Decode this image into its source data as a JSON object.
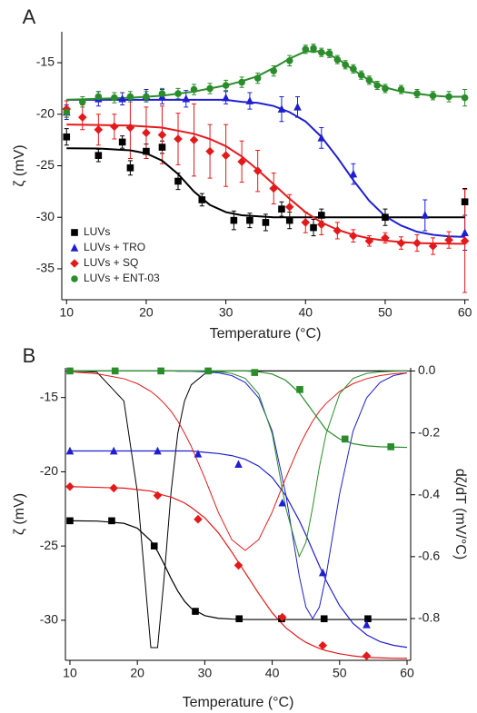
{
  "chart_data": [
    {
      "type": "scatter",
      "panel_label": "A",
      "x_label": "Temperature (°C)",
      "y_label": "ζ (mV)",
      "xlim": [
        9.4,
        60.5
      ],
      "ylim": [
        -38,
        -12
      ],
      "xticks": [
        10,
        20,
        30,
        40,
        50,
        60
      ],
      "yticks": [
        -35,
        -30,
        -25,
        -20,
        -15
      ],
      "legend": "lower left",
      "fit_x": [
        10,
        14,
        18,
        20,
        22,
        24,
        26,
        28,
        30,
        32,
        34,
        36,
        38,
        40,
        42,
        44,
        46,
        48,
        50,
        52,
        54,
        56,
        58,
        60
      ],
      "series": [
        {
          "name": "LUVs",
          "color": "#000000",
          "marker": "square",
          "x": [
            10,
            14,
            17,
            18,
            20,
            22,
            24,
            27,
            31,
            33,
            35,
            37,
            38,
            41,
            42,
            50,
            60
          ],
          "values": [
            -22.2,
            -24,
            -22.7,
            -25.2,
            -23.6,
            -23.2,
            -26.5,
            -28.3,
            -30.3,
            -30.3,
            -30.5,
            -29.2,
            -30.3,
            -31,
            -29.8,
            -30,
            -28.5
          ],
          "errors": [
            0.8,
            0.6,
            0.6,
            0.7,
            0.7,
            0.6,
            0.8,
            0.6,
            0.9,
            0.7,
            0.8,
            0.7,
            0.8,
            0.8,
            0.6,
            0.8,
            1.3
          ],
          "fit": [
            -23.3,
            -23.33,
            -23.5,
            -23.8,
            -24.5,
            -25.8,
            -27.5,
            -28.8,
            -29.5,
            -29.8,
            -29.9,
            -30,
            -30,
            -30,
            -30,
            -30,
            -30,
            -30,
            -30,
            -30,
            -30,
            -30,
            -30,
            -30
          ]
        },
        {
          "name": "LUVs + TRO",
          "color": "#1f1fd0",
          "marker": "triangle",
          "x": [
            10,
            14,
            17,
            20,
            22,
            25,
            30,
            33,
            37,
            39,
            42,
            46,
            55,
            60
          ],
          "values": [
            -19.8,
            -18.5,
            -18.5,
            -18.2,
            -18.3,
            -18.5,
            -18.4,
            -18.7,
            -19.5,
            -19.3,
            -22.3,
            -25.8,
            -29.8,
            -31.5
          ],
          "errors": [
            0.7,
            0.7,
            0.6,
            0.6,
            0.7,
            0.8,
            0.6,
            0.8,
            1.2,
            1,
            1,
            1,
            1.5,
            1.7
          ],
          "fit": [
            -18.6,
            -18.6,
            -18.6,
            -18.6,
            -18.6,
            -18.6,
            -18.6,
            -18.6,
            -18.6,
            -18.8,
            -18.9,
            -19.2,
            -19.8,
            -20.7,
            -22.2,
            -24.2,
            -26.4,
            -28.4,
            -29.9,
            -30.8,
            -31.4,
            -31.7,
            -31.85,
            -31.9
          ]
        },
        {
          "name": "LUVs + SQ",
          "color": "#e31a1c",
          "marker": "diamond",
          "x": [
            10,
            12,
            14,
            16,
            18,
            20,
            22,
            24,
            26,
            28,
            30,
            32,
            34,
            36,
            38,
            40,
            42,
            44,
            46,
            48,
            50,
            52,
            54,
            56,
            58,
            60
          ],
          "values": [
            -19.5,
            -20.3,
            -21.5,
            -21.2,
            -21.3,
            -21.8,
            -22,
            -22.4,
            -22.5,
            -23.6,
            -24,
            -24.6,
            -25.5,
            -27.2,
            -29,
            -30.5,
            -30.7,
            -31.3,
            -31.8,
            -32.3,
            -32,
            -32.5,
            -32.5,
            -32.8,
            -32.2,
            -32.3
          ],
          "errors": [
            0.8,
            1.2,
            1.5,
            1.2,
            3,
            2.5,
            2.8,
            2.5,
            3.5,
            2.6,
            3,
            2,
            2,
            1.5,
            1.2,
            1,
            1,
            0.8,
            0.6,
            0.5,
            0.5,
            0.6,
            0.8,
            0.8,
            0.8,
            5
          ],
          "fit": [
            -21.0,
            -21.05,
            -21.1,
            -21.2,
            -21.3,
            -21.6,
            -21.9,
            -22.4,
            -23.1,
            -24.1,
            -25.4,
            -26.8,
            -28.2,
            -29.5,
            -30.5,
            -31.2,
            -31.7,
            -32.05,
            -32.26,
            -32.4,
            -32.5,
            -32.53,
            -32.56,
            -32.57
          ]
        },
        {
          "name": "LUVs + ENT-03",
          "color": "#2a8c2a",
          "marker": "circle",
          "x": [
            10,
            12,
            14,
            16,
            18,
            20,
            22,
            24,
            26,
            28,
            30,
            32,
            34,
            36,
            38,
            40,
            41,
            42,
            43,
            44,
            45,
            46,
            47,
            48,
            49,
            50,
            52,
            54,
            56,
            58,
            60
          ],
          "values": [
            -19.8,
            -18.8,
            -18.3,
            -18.4,
            -18.3,
            -18.3,
            -18,
            -18,
            -17.6,
            -17.5,
            -17.2,
            -16.9,
            -16.5,
            -15.8,
            -14.8,
            -13.7,
            -13.6,
            -14,
            -14.1,
            -14.7,
            -15.2,
            -15.6,
            -16.2,
            -16.7,
            -17.2,
            -17.5,
            -17.6,
            -18,
            -18.2,
            -18.3,
            -18.4
          ],
          "errors": [
            0.5,
            0.5,
            0.5,
            0.5,
            0.5,
            0.5,
            0.5,
            0.5,
            0.5,
            0.5,
            0.5,
            0.5,
            0.5,
            0.5,
            0.5,
            0.4,
            0.4,
            0.4,
            0.4,
            0.4,
            0.4,
            0.4,
            0.4,
            0.4,
            0.4,
            0.4,
            0.4,
            0.4,
            0.4,
            0.5,
            0.8
          ],
          "fit": [
            -18.6,
            -18.5,
            -18.4,
            -18.3,
            -18.2,
            -18.0,
            -17.8,
            -17.5,
            -17.2,
            -16.8,
            -16.3,
            -15.5,
            -14.6,
            -13.9,
            -13.9,
            -14.6,
            -15.7,
            -16.7,
            -17.4,
            -17.8,
            -18.0,
            -18.2,
            -18.3,
            -18.3
          ]
        }
      ]
    },
    {
      "type": "line",
      "panel_label": "B",
      "x_label": "Temperature (°C)",
      "y_label": "ζ (mV)",
      "y2_label": "dζ/dT (mV/°C)",
      "xlim": [
        9.33,
        60.54
      ],
      "ylim": [
        -32.7,
        -13.0
      ],
      "y2lim": [
        -0.935,
        0.01
      ],
      "xticks": [
        10,
        20,
        30,
        40,
        50,
        60
      ],
      "yticks": [
        -30,
        -25,
        -20,
        -15
      ],
      "y2ticks": [
        {
          "value": 0,
          "label": "0.0"
        },
        -0.2,
        -0.4,
        -0.6,
        -0.8
      ],
      "reference_line": {
        "axis": "y2",
        "value": 0
      },
      "curve_x": [
        10,
        14,
        18,
        20,
        22,
        23,
        24,
        25,
        26,
        27,
        28,
        30,
        32,
        34,
        36,
        38,
        40,
        42,
        44,
        45,
        46,
        47,
        48,
        50,
        52,
        54,
        56,
        58,
        60
      ],
      "series": [
        {
          "color": "#000000",
          "marker": "square",
          "axis": "y",
          "x": [
            10,
            16.2,
            22.5,
            28.6,
            35.1,
            41.4,
            47.7,
            54.2
          ],
          "values": [
            -23.3,
            -23.3,
            -25.0,
            -29.4,
            -29.9,
            -29.9,
            -29.9,
            -29.9
          ],
          "curve": [
            -23.3,
            -23.32,
            -23.47,
            -23.8,
            -24.65,
            -25.36,
            -26.25,
            -27.19,
            -28.04,
            -28.72,
            -29.2,
            -29.69,
            -29.87,
            -29.92,
            -29.95,
            -29.95,
            -29.95,
            -29.95,
            -29.95,
            -29.95,
            -29.95,
            -29.95,
            -29.95,
            -29.95,
            -29.95,
            -29.95,
            -29.95,
            -29.95,
            -29.95
          ],
          "derivative": [
            0,
            -0.004,
            -0.097,
            -0.391,
            -0.894,
            -0.894,
            -0.662,
            -0.391,
            -0.201,
            -0.097,
            -0.045,
            -0.009,
            -0.002,
            0,
            0,
            0,
            0,
            0,
            0,
            0,
            0,
            0,
            0,
            0,
            0,
            0,
            0,
            0,
            0
          ]
        },
        {
          "color": "#1f1fd0",
          "marker": "triangle",
          "axis": "y",
          "x": [
            10,
            16.5,
            23,
            29,
            35,
            41.5,
            47.5,
            54
          ],
          "values": [
            -18.6,
            -18.6,
            -18.6,
            -18.8,
            -19.5,
            -22.1,
            -26.8,
            -30.3
          ],
          "curve": [
            -18.6,
            -18.6,
            -18.6,
            -18.6,
            -18.6,
            -18.6,
            -18.6,
            -18.6,
            -18.6,
            -18.6,
            -18.6,
            -18.69,
            -18.77,
            -18.91,
            -19.16,
            -19.62,
            -20.38,
            -21.59,
            -23.27,
            -24.25,
            -25.3,
            -26.34,
            -27.33,
            -29.02,
            -30.22,
            -30.98,
            -31.44,
            -31.69,
            -31.83
          ],
          "derivative": [
            0,
            0,
            0,
            0,
            0,
            0,
            0,
            0,
            -0.001,
            -0.001,
            -0.001,
            -0.003,
            -0.006,
            -0.015,
            -0.037,
            -0.087,
            -0.194,
            -0.397,
            -0.661,
            -0.763,
            -0.8,
            -0.763,
            -0.661,
            -0.397,
            -0.194,
            -0.087,
            -0.037,
            -0.015,
            -0.006
          ]
        },
        {
          "color": "#e31a1c",
          "marker": "diamond",
          "axis": "y",
          "x": [
            10,
            16.5,
            23,
            29,
            35,
            41.5,
            47.5,
            54
          ],
          "values": [
            -21.0,
            -21.1,
            -21.6,
            -23.2,
            -26.3,
            -29.8,
            -31.7,
            -32.4
          ],
          "curve": [
            -21.0,
            -21.05,
            -21.1,
            -21.2,
            -21.3,
            -21.44,
            -21.6,
            -21.7,
            -21.9,
            -22.1,
            -22.4,
            -23.1,
            -24.1,
            -25.4,
            -26.8,
            -28.2,
            -29.5,
            -30.5,
            -31.2,
            -31.49,
            -31.7,
            -31.9,
            -32.05,
            -32.26,
            -32.4,
            -32.5,
            -32.53,
            -32.56,
            -32.57
          ],
          "derivative": [
            -0.003,
            -0.009,
            -0.025,
            -0.041,
            -0.066,
            -0.084,
            -0.105,
            -0.13,
            -0.162,
            -0.201,
            -0.244,
            -0.346,
            -0.456,
            -0.545,
            -0.58,
            -0.545,
            -0.456,
            -0.346,
            -0.244,
            -0.201,
            -0.162,
            -0.13,
            -0.105,
            -0.066,
            -0.041,
            -0.025,
            -0.015,
            -0.009,
            -0.006
          ]
        },
        {
          "color": "#2a8c2a",
          "marker": "square",
          "axis": "y2",
          "x": [
            10,
            16.7,
            23.5,
            30.5,
            37.4,
            44.1,
            50.8,
            57.6
          ],
          "values": [
            0,
            0,
            0,
            0,
            -0.005,
            -0.06,
            -0.22,
            -0.245
          ],
          "curve": [
            0,
            0,
            0,
            0,
            0,
            0,
            0,
            0,
            0,
            0,
            0,
            0,
            0,
            0,
            0,
            -0.003,
            -0.01,
            -0.03,
            -0.07,
            -0.1,
            -0.13,
            -0.16,
            -0.19,
            -0.22,
            -0.235,
            -0.242,
            -0.245,
            -0.246,
            -0.247
          ],
          "derivative": [
            0,
            0,
            0,
            0,
            0,
            0,
            0,
            0,
            0,
            0,
            0,
            -0.001,
            -0.003,
            -0.008,
            -0.024,
            -0.074,
            -0.203,
            -0.441,
            -0.6,
            -0.554,
            -0.441,
            -0.31,
            -0.203,
            -0.074,
            -0.024,
            -0.008,
            -0.003,
            -0.001,
            0
          ]
        }
      ]
    }
  ]
}
